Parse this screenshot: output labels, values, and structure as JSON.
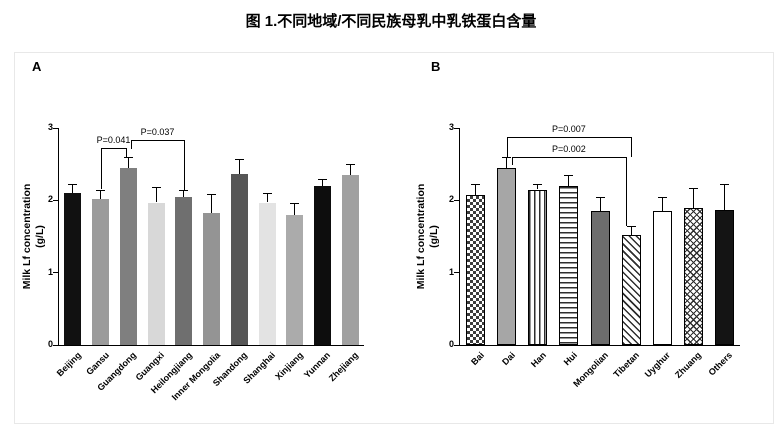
{
  "page": {
    "title": "图 1.不同地域/不同民族母乳中乳铁蛋白含量"
  },
  "chart_data": [
    {
      "type": "bar",
      "panel": "A",
      "title": "",
      "ylabel_line1": "Milk Lf concentration",
      "ylabel_line2": "(g/L)",
      "xlabel": "",
      "ylim": [
        0,
        3
      ],
      "yticks": [
        0,
        1,
        2,
        3
      ],
      "grid": false,
      "legend": false,
      "categories": [
        "Beijing",
        "Gansu",
        "Guangdong",
        "Guangxi",
        "Heilongjiang",
        "Inner Mongolia",
        "Shandong",
        "Shanghai",
        "Xinjiang",
        "Yunnan",
        "Zhejiang"
      ],
      "values": [
        2.1,
        2.02,
        2.45,
        1.97,
        2.05,
        1.82,
        2.37,
        1.97,
        1.8,
        2.2,
        2.35
      ],
      "errors": [
        0.12,
        0.13,
        0.15,
        0.22,
        0.1,
        0.27,
        0.2,
        0.13,
        0.17,
        0.1,
        0.15
      ],
      "bordered": false,
      "styles": [
        {
          "color": "#111111"
        },
        {
          "color": "#9b9b9b"
        },
        {
          "color": "#7f7f7f"
        },
        {
          "color": "#d8d8d8"
        },
        {
          "color": "#6f6f6f"
        },
        {
          "color": "#949494"
        },
        {
          "color": "#565656"
        },
        {
          "color": "#e3e3e3"
        },
        {
          "color": "#ababab"
        },
        {
          "color": "#0d0d0d"
        },
        {
          "color": "#a0a0a0"
        }
      ],
      "annotations": [
        {
          "label": "P=0.041",
          "from": 1,
          "to": 2,
          "y": 2.72,
          "dropL": 41,
          "dropR": 9,
          "insetL": 0,
          "insetR": 2
        },
        {
          "label": "P=0.037",
          "from": 2,
          "to": 4,
          "y": 2.84,
          "dropL": 9,
          "dropR": 50,
          "insetL": 3,
          "insetR": 0
        }
      ]
    },
    {
      "type": "bar",
      "panel": "B",
      "title": "",
      "ylabel_line1": "Milk Lf concentration",
      "ylabel_line2": "(g/L)",
      "xlabel": "",
      "ylim": [
        0,
        3
      ],
      "yticks": [
        0,
        1,
        2,
        3
      ],
      "grid": false,
      "legend": false,
      "categories": [
        "Bai",
        "Dai",
        "Han",
        "Hui",
        "Mongolian",
        "Tibetan",
        "Uyghur",
        "Zhuang",
        "Others"
      ],
      "values": [
        2.07,
        2.45,
        2.15,
        2.2,
        1.85,
        1.52,
        1.85,
        1.9,
        1.87
      ],
      "errors": [
        0.15,
        0.15,
        0.08,
        0.15,
        0.2,
        0.12,
        0.2,
        0.27,
        0.35
      ],
      "bordered": true,
      "styles": [
        {
          "pattern": "checker"
        },
        {
          "color": "#a6a6a6"
        },
        {
          "pattern": "vlines"
        },
        {
          "pattern": "hlines"
        },
        {
          "color": "#6d6d6d"
        },
        {
          "pattern": "diag"
        },
        {
          "color": "#ffffff"
        },
        {
          "pattern": "diagcross"
        },
        {
          "color": "#141414"
        }
      ],
      "annotations": [
        {
          "label": "P=0.007",
          "from": 1,
          "to": 5,
          "y": 2.88,
          "dropL": 20,
          "dropR": 20,
          "insetL": 0,
          "insetR": 0
        },
        {
          "label": "P=0.002",
          "from": 1,
          "to": 5,
          "y": 2.6,
          "dropL": 8,
          "dropR": 69,
          "insetL": 5,
          "insetR": 5
        }
      ]
    }
  ]
}
